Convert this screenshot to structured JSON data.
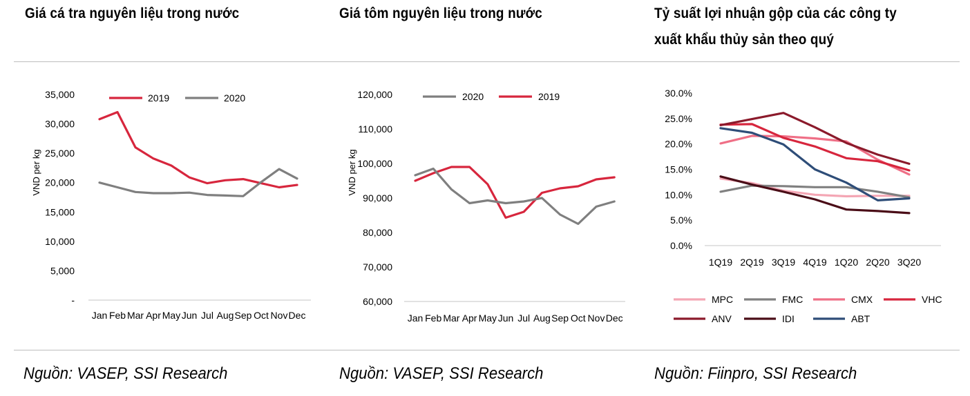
{
  "charts": [
    {
      "title": "Giá cá tra nguyên liệu trong nước",
      "source": "Nguồn: VASEP, SSI Research"
    },
    {
      "title": "Giá tôm nguyên liệu trong nước",
      "source": "Nguồn: VASEP, SSI Research"
    },
    {
      "title_line1": "Tỷ suất lợi nhuận gộp của các công ty",
      "title_line2": "xuất khẩu thủy sản theo quý",
      "source": "Nguồn: Fiinpro, SSI Research"
    }
  ],
  "chart_data": [
    {
      "type": "line",
      "title": "Giá cá tra nguyên liệu trong nước",
      "ylabel": "VND per kg",
      "xlabel": "",
      "categories": [
        "Jan",
        "Feb",
        "Mar",
        "Apr",
        "May",
        "Jun",
        "Jul",
        "Aug",
        "Sep",
        "Oct",
        "Nov",
        "Dec"
      ],
      "ylim": [
        0,
        35000
      ],
      "yticks": [
        0,
        5000,
        10000,
        15000,
        20000,
        25000,
        30000,
        35000
      ],
      "ytick_labels": [
        "-",
        "5,000",
        "10,000",
        "15,000",
        "20,000",
        "25,000",
        "30,000",
        "35,000"
      ],
      "legend_position": "top",
      "legend_order": [
        "2019",
        "2020"
      ],
      "series": [
        {
          "name": "2019",
          "color": "#d7263d",
          "values": [
            30800,
            32000,
            26000,
            24100,
            22900,
            20900,
            19900,
            20400,
            20600,
            19900,
            19200,
            19600
          ]
        },
        {
          "name": "2020",
          "color": "#7f7f7f",
          "values": [
            20000,
            19200,
            18400,
            18200,
            18200,
            18300,
            17900,
            17800,
            17700,
            20100,
            22300,
            20700
          ]
        }
      ],
      "grid": false
    },
    {
      "type": "line",
      "title": "Giá tôm nguyên liệu trong nước",
      "ylabel": "VND per kg",
      "xlabel": "",
      "categories": [
        "Jan",
        "Feb",
        "Mar",
        "Apr",
        "May",
        "Jun",
        "Jul",
        "Aug",
        "Sep",
        "Oct",
        "Nov",
        "Dec"
      ],
      "ylim": [
        60000,
        120000
      ],
      "yticks": [
        60000,
        70000,
        80000,
        90000,
        100000,
        110000,
        120000
      ],
      "ytick_labels": [
        "60,000",
        "70,000",
        "80,000",
        "90,000",
        "100,000",
        "110,000",
        "120,000"
      ],
      "legend_position": "top",
      "legend_order": [
        "2020",
        "2019"
      ],
      "series": [
        {
          "name": "2019",
          "color": "#d7263d",
          "values": [
            95000,
            97200,
            99000,
            99000,
            94000,
            84300,
            86000,
            91500,
            92800,
            93400,
            95400,
            96000
          ]
        },
        {
          "name": "2020",
          "color": "#7f7f7f",
          "values": [
            96600,
            98500,
            92500,
            88500,
            89300,
            88500,
            89000,
            90000,
            85200,
            82500,
            87500,
            89000
          ]
        }
      ],
      "grid": false
    },
    {
      "type": "line",
      "title": "Tỷ suất lợi nhuận gộp của các công ty xuất khẩu thủy sản theo quý",
      "ylabel": "",
      "xlabel": "",
      "categories": [
        "1Q19",
        "2Q19",
        "3Q19",
        "4Q19",
        "1Q20",
        "2Q20",
        "3Q20"
      ],
      "ylim": [
        0,
        30
      ],
      "yticks": [
        0,
        5,
        10,
        15,
        20,
        25,
        30
      ],
      "ytick_labels": [
        "0.0%",
        "5.0%",
        "10.0%",
        "15.0%",
        "20.0%",
        "25.0%",
        "30.0%"
      ],
      "legend_position": "bottom",
      "series": [
        {
          "name": "MPC",
          "color": "#f4a6b4",
          "values": [
            13.2,
            12.3,
            10.8,
            10.0,
            9.7,
            9.8,
            9.8
          ]
        },
        {
          "name": "FMC",
          "color": "#808080",
          "values": [
            10.6,
            11.8,
            11.7,
            11.5,
            11.5,
            10.6,
            9.5
          ]
        },
        {
          "name": "CMX",
          "color": "#ef6f86",
          "values": [
            20.1,
            21.6,
            21.5,
            21.1,
            20.5,
            16.9,
            14.0
          ]
        },
        {
          "name": "VHC",
          "color": "#d7263d",
          "values": [
            23.8,
            23.9,
            21.2,
            19.5,
            17.2,
            16.6,
            14.8
          ]
        },
        {
          "name": "ANV",
          "color": "#8b1a2b",
          "values": [
            23.7,
            24.9,
            26.1,
            23.3,
            20.2,
            17.9,
            16.1
          ]
        },
        {
          "name": "IDI",
          "color": "#4a0d17",
          "values": [
            13.6,
            12.0,
            10.6,
            9.1,
            7.1,
            6.8,
            6.4
          ]
        },
        {
          "name": "ABT",
          "color": "#2e4d78",
          "values": [
            23.1,
            22.2,
            19.9,
            15.0,
            12.4,
            8.9,
            9.3
          ]
        }
      ],
      "grid": false
    }
  ]
}
